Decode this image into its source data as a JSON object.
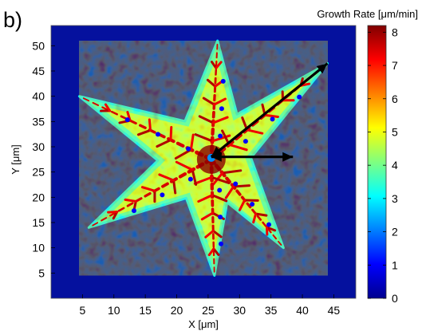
{
  "panel_label": "b)",
  "chart_data": {
    "type": "heatmap",
    "title": "",
    "xlabel": "X [μm]",
    "ylabel": "Y [μm]",
    "xlim": [
      0,
      48.5
    ],
    "ylim": [
      0,
      54
    ],
    "x_ticks": [
      5,
      10,
      15,
      20,
      25,
      30,
      35,
      40,
      45
    ],
    "y_ticks": [
      5,
      10,
      15,
      20,
      25,
      30,
      35,
      40,
      45,
      50
    ],
    "colorbar": {
      "label": "Growth Rate [μm/min]",
      "min": 0,
      "max": 8.2,
      "ticks": [
        0,
        1,
        2,
        3,
        4,
        5,
        6,
        7,
        8
      ],
      "colormap": "jet"
    },
    "background_value": 0,
    "shape": "six-armed star (dendrite) centered near (25, 27.5)",
    "star_tips": [
      [
        26.5,
        51
      ],
      [
        44,
        46.5
      ],
      [
        37,
        10
      ],
      [
        26,
        4.5
      ],
      [
        6,
        14
      ],
      [
        4.5,
        40
      ]
    ],
    "typical_values": {
      "arm_edges": 3.5,
      "arm_interior": 5,
      "branch_ridges": 7.5,
      "holes": 1
    },
    "arrows": [
      {
        "from": [
          25.5,
          28
        ],
        "to": [
          44,
          46.5
        ]
      },
      {
        "from": [
          25.5,
          28
        ],
        "to": [
          38.5,
          28
        ]
      }
    ]
  }
}
